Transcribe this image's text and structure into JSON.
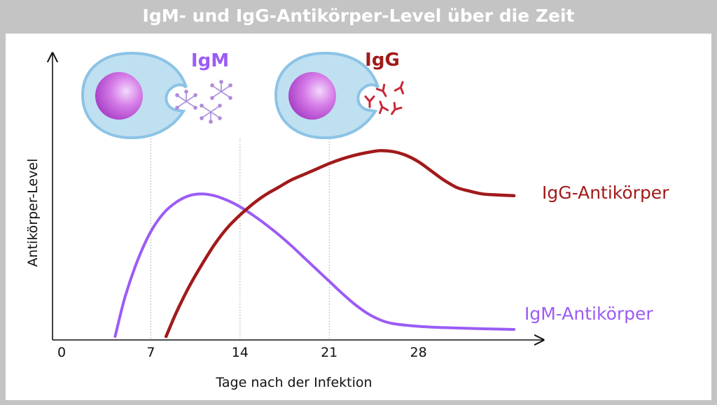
{
  "title": "IgM- und IgG-Antikörper-Level über die Zeit",
  "colors": {
    "background": "#c4c4c4",
    "igm": "#9b5cf5",
    "igg": "#a11a1a",
    "cell_fill": "#bfe0f0",
    "cell_stroke": "#8cc3e6",
    "nucleus": "#cf6fe0"
  },
  "illustration": {
    "igm_label": "IgM",
    "igg_label": "IgG",
    "igm_icon": "plasma-cell-with-igm-pentamers",
    "igg_icon": "plasma-cell-with-igg-monomers"
  },
  "chart_data": {
    "type": "line",
    "title": "IgM- und IgG-Antikörper-Level über die Zeit",
    "xlabel": "Tage nach der Infektion",
    "ylabel": "Antikörper-Level",
    "x_ticks": [
      0,
      7,
      14,
      21,
      28
    ],
    "xlim": [
      0,
      38
    ],
    "ylim": [
      0,
      1
    ],
    "y_ticks_shown": false,
    "grid": "vertical dashed lines at 7, 14, 21",
    "legend": "direct labels at line ends (right)",
    "series": [
      {
        "name": "IgM-Antikörper",
        "color": "#9b5cf5",
        "x": [
          4.2,
          5,
          6,
          7,
          8,
          9,
          10,
          11,
          12,
          13,
          14,
          15,
          16,
          17,
          18,
          19,
          20,
          21,
          22,
          23,
          24,
          25,
          26,
          28,
          30,
          33,
          35.5
        ],
        "y": [
          0.0,
          0.22,
          0.42,
          0.57,
          0.67,
          0.73,
          0.765,
          0.775,
          0.765,
          0.74,
          0.705,
          0.66,
          0.61,
          0.555,
          0.495,
          0.43,
          0.365,
          0.3,
          0.235,
          0.175,
          0.125,
          0.09,
          0.07,
          0.055,
          0.048,
          0.042,
          0.038
        ]
      },
      {
        "name": "IgG-Antikörper",
        "color": "#a11a1a",
        "x": [
          8.2,
          9,
          10,
          11,
          12,
          13,
          14,
          15,
          16,
          17,
          18,
          19,
          20,
          21,
          22,
          23,
          24,
          25,
          26,
          27,
          28,
          29,
          30,
          31,
          32,
          33,
          34,
          35.5
        ],
        "y": [
          0.0,
          0.13,
          0.27,
          0.39,
          0.5,
          0.59,
          0.66,
          0.72,
          0.77,
          0.81,
          0.85,
          0.88,
          0.91,
          0.94,
          0.965,
          0.985,
          1.0,
          1.01,
          1.005,
          0.985,
          0.95,
          0.9,
          0.85,
          0.81,
          0.79,
          0.775,
          0.77,
          0.765
        ]
      }
    ]
  }
}
